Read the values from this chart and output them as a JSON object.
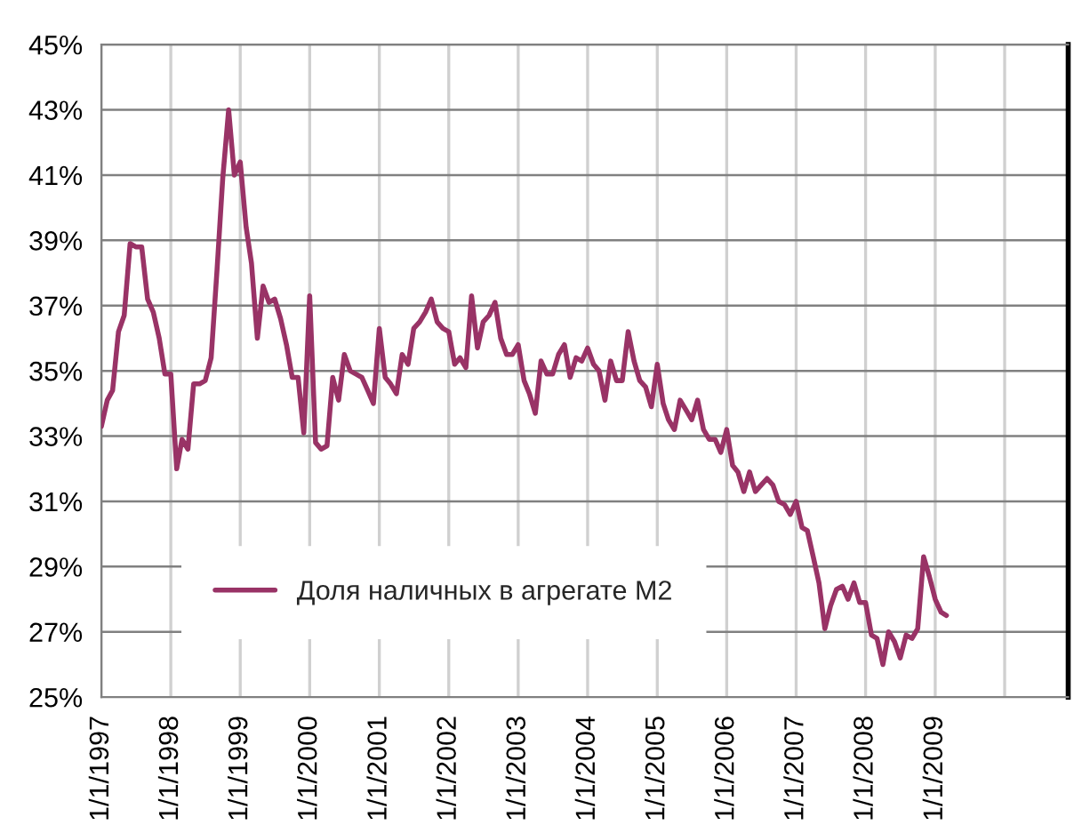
{
  "chart_data": {
    "type": "line",
    "x": [
      "1997-01",
      "1997-02",
      "1997-03",
      "1997-04",
      "1997-05",
      "1997-06",
      "1997-07",
      "1997-08",
      "1997-09",
      "1997-10",
      "1997-11",
      "1997-12",
      "1998-01",
      "1998-02",
      "1998-03",
      "1998-04",
      "1998-05",
      "1998-06",
      "1998-07",
      "1998-08",
      "1998-09",
      "1998-10",
      "1998-11",
      "1998-12",
      "1999-01",
      "1999-02",
      "1999-03",
      "1999-04",
      "1999-05",
      "1999-06",
      "1999-07",
      "1999-08",
      "1999-09",
      "1999-10",
      "1999-11",
      "1999-12",
      "2000-01",
      "2000-02",
      "2000-03",
      "2000-04",
      "2000-05",
      "2000-06",
      "2000-07",
      "2000-08",
      "2000-09",
      "2000-10",
      "2000-11",
      "2000-12",
      "2001-01",
      "2001-02",
      "2001-03",
      "2001-04",
      "2001-05",
      "2001-06",
      "2001-07",
      "2001-08",
      "2001-09",
      "2001-10",
      "2001-11",
      "2001-12",
      "2002-01",
      "2002-02",
      "2002-03",
      "2002-04",
      "2002-05",
      "2002-06",
      "2002-07",
      "2002-08",
      "2002-09",
      "2002-10",
      "2002-11",
      "2002-12",
      "2003-01",
      "2003-02",
      "2003-03",
      "2003-04",
      "2003-05",
      "2003-06",
      "2003-07",
      "2003-08",
      "2003-09",
      "2003-10",
      "2003-11",
      "2003-12",
      "2004-01",
      "2004-02",
      "2004-03",
      "2004-04",
      "2004-05",
      "2004-06",
      "2004-07",
      "2004-08",
      "2004-09",
      "2004-10",
      "2004-11",
      "2004-12",
      "2005-01",
      "2005-02",
      "2005-03",
      "2005-04",
      "2005-05",
      "2005-06",
      "2005-07",
      "2005-08",
      "2005-09",
      "2005-10",
      "2005-11",
      "2005-12",
      "2006-01",
      "2006-02",
      "2006-03",
      "2006-04",
      "2006-05",
      "2006-06",
      "2006-07",
      "2006-08",
      "2006-09",
      "2006-10",
      "2006-11",
      "2006-12",
      "2007-01",
      "2007-02",
      "2007-03",
      "2007-04",
      "2007-05",
      "2007-06",
      "2007-07",
      "2007-08",
      "2007-09",
      "2007-10",
      "2007-11",
      "2007-12",
      "2008-01",
      "2008-02",
      "2008-03",
      "2008-04",
      "2008-05",
      "2008-06",
      "2008-07",
      "2008-08",
      "2008-09",
      "2008-10",
      "2008-11",
      "2008-12",
      "2009-01",
      "2009-02",
      "2009-03"
    ],
    "series": [
      {
        "name": "Доля наличных в агрегате M2",
        "color": "#993366",
        "values": [
          33.3,
          34.1,
          34.4,
          36.2,
          36.7,
          38.9,
          38.8,
          38.8,
          37.2,
          36.8,
          36.0,
          34.9,
          34.9,
          32.0,
          32.9,
          32.6,
          34.6,
          34.6,
          34.7,
          35.4,
          38.1,
          40.9,
          43.0,
          41.0,
          41.4,
          39.4,
          38.3,
          36.0,
          37.6,
          37.1,
          37.2,
          36.6,
          35.8,
          34.8,
          34.8,
          33.1,
          37.3,
          32.8,
          32.6,
          32.7,
          34.8,
          34.1,
          35.5,
          35.0,
          34.9,
          34.8,
          34.4,
          34.0,
          36.3,
          34.8,
          34.6,
          34.3,
          35.5,
          35.2,
          36.3,
          36.5,
          36.8,
          37.2,
          36.5,
          36.3,
          36.2,
          35.2,
          35.4,
          35.1,
          37.3,
          35.7,
          36.5,
          36.7,
          37.1,
          36.0,
          35.5,
          35.5,
          35.8,
          34.7,
          34.3,
          33.7,
          35.3,
          34.9,
          34.9,
          35.5,
          35.8,
          34.8,
          35.4,
          35.3,
          35.7,
          35.2,
          35.0,
          34.1,
          35.3,
          34.7,
          34.7,
          36.2,
          35.3,
          34.7,
          34.5,
          33.9,
          35.2,
          34.0,
          33.5,
          33.2,
          34.1,
          33.8,
          33.5,
          34.1,
          33.2,
          32.9,
          32.9,
          32.5,
          33.2,
          32.1,
          31.9,
          31.3,
          31.9,
          31.3,
          31.5,
          31.7,
          31.5,
          31.0,
          30.9,
          30.6,
          31.0,
          30.2,
          30.1,
          29.3,
          28.5,
          27.1,
          27.8,
          28.3,
          28.4,
          28.0,
          28.5,
          27.9,
          27.9,
          26.9,
          26.8,
          26.0,
          27.0,
          26.7,
          26.2,
          26.9,
          26.8,
          27.1,
          29.3,
          28.7,
          28.0,
          27.6,
          27.5
        ]
      }
    ],
    "xlim": [
      "1997-01-01",
      "2010-12-01"
    ],
    "xticks": [
      {
        "value": "1997-01-01",
        "label": "1/1/1997"
      },
      {
        "value": "1998-01-01",
        "label": "1/1/1998"
      },
      {
        "value": "1999-01-01",
        "label": "1/1/1999"
      },
      {
        "value": "2000-01-01",
        "label": "1/1/2000"
      },
      {
        "value": "2001-01-01",
        "label": "1/1/2001"
      },
      {
        "value": "2002-01-01",
        "label": "1/1/2002"
      },
      {
        "value": "2003-01-01",
        "label": "1/1/2003"
      },
      {
        "value": "2004-01-01",
        "label": "1/1/2004"
      },
      {
        "value": "2005-01-01",
        "label": "1/1/2005"
      },
      {
        "value": "2006-01-01",
        "label": "1/1/2006"
      },
      {
        "value": "2007-01-01",
        "label": "1/1/2007"
      },
      {
        "value": "2008-01-01",
        "label": "1/1/2008"
      },
      {
        "value": "2009-01-01",
        "label": "1/1/2009"
      },
      {
        "value": "2010-01-01",
        "label": null
      }
    ],
    "ylim": [
      25,
      45
    ],
    "yticks": [
      {
        "value": 25,
        "label": "25%"
      },
      {
        "value": 27,
        "label": "27%"
      },
      {
        "value": 29,
        "label": "29%"
      },
      {
        "value": 31,
        "label": "31%"
      },
      {
        "value": 33,
        "label": "33%"
      },
      {
        "value": 35,
        "label": "35%"
      },
      {
        "value": 37,
        "label": "37%"
      },
      {
        "value": 39,
        "label": "39%"
      },
      {
        "value": 41,
        "label": "41%"
      },
      {
        "value": 43,
        "label": "43%"
      },
      {
        "value": 45,
        "label": "45%"
      }
    ],
    "grid": true,
    "legend": "bottom left",
    "marker": "none",
    "line_style": "solid"
  }
}
